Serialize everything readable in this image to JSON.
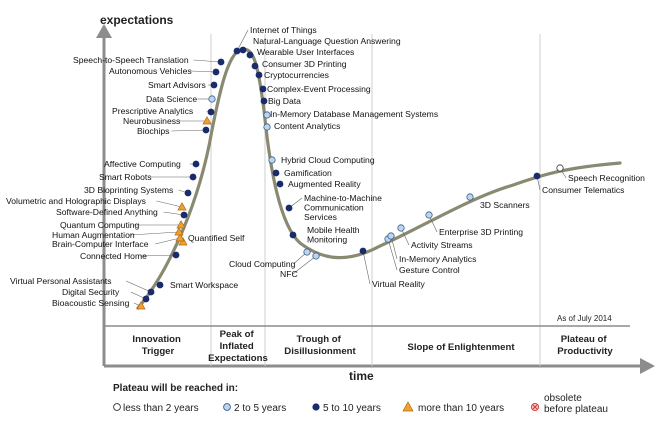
{
  "axes": {
    "y_title": "expectations",
    "x_title": "time"
  },
  "as_of": "As of July 2014",
  "phases": [
    {
      "lines": [
        "Innovation",
        "Trigger"
      ]
    },
    {
      "lines": [
        "Peak of",
        "Inflated",
        "Expectations"
      ]
    },
    {
      "lines": [
        "Trough of",
        "Disillusionment"
      ]
    },
    {
      "lines": [
        "Slope of Enlightenment"
      ]
    },
    {
      "lines": [
        "Plateau of",
        "Productivity"
      ]
    }
  ],
  "legend": {
    "title": "Plateau will be reached in:",
    "items": [
      {
        "label": "less than 2 years",
        "marker": "white-circle",
        "color": "#ffffff"
      },
      {
        "label": "2 to 5 years",
        "marker": "lightblue-circle",
        "color": "#bcd6ee"
      },
      {
        "label": "5 to 10 years",
        "marker": "navy-circle",
        "color": "#1a2b6b"
      },
      {
        "label": "more than 10 years",
        "marker": "orange-triangle",
        "color": "#f0a030"
      },
      {
        "label": "obsolete\nbefore plateau",
        "marker": "red-x-circle",
        "color": "#ee8888"
      }
    ]
  },
  "colors": {
    "curve": "#8a8a72",
    "navy": "#1a2b6b",
    "lightblue": "#bcd6ee",
    "orange": "#f0a030",
    "axis": "#8c8c8c"
  },
  "technologies": [
    {
      "label": "Bioacoustic Sensing",
      "marker": "orange-triangle"
    },
    {
      "label": "Digital Security",
      "marker": "navy-circle"
    },
    {
      "label": "Virtual Personal Assistants",
      "marker": "navy-circle"
    },
    {
      "label": "Smart Workspace",
      "marker": "navy-circle"
    },
    {
      "label": "Connected Home",
      "marker": "navy-circle"
    },
    {
      "label": "Quantified Self",
      "marker": "orange-triangle"
    },
    {
      "label": "Brain-Computer Interface",
      "marker": "orange-triangle"
    },
    {
      "label": "Human Augmentation",
      "marker": "orange-triangle"
    },
    {
      "label": "Quantum Computing",
      "marker": "orange-triangle"
    },
    {
      "label": "Software-Defined Anything",
      "marker": "navy-circle"
    },
    {
      "label": "Volumetric and Holographic Displays",
      "marker": "orange-triangle"
    },
    {
      "label": "3D Bioprinting Systems",
      "marker": "navy-circle"
    },
    {
      "label": "Smart Robots",
      "marker": "navy-circle"
    },
    {
      "label": "Affective  Computing",
      "marker": "navy-circle"
    },
    {
      "label": "Biochips",
      "marker": "navy-circle"
    },
    {
      "label": "Neurobusiness",
      "marker": "orange-triangle"
    },
    {
      "label": "Prescriptive Analytics",
      "marker": "navy-circle"
    },
    {
      "label": "Data Science",
      "marker": "lightblue-circle"
    },
    {
      "label": "Smart Advisors",
      "marker": "navy-circle"
    },
    {
      "label": "Autonomous Vehicles",
      "marker": "navy-circle"
    },
    {
      "label": "Speech-to-Speech Translation",
      "marker": "navy-circle"
    },
    {
      "label": "Internet of Things",
      "marker": "navy-circle"
    },
    {
      "label": "Natural-Language Question Answering",
      "marker": "navy-circle"
    },
    {
      "label": "Wearable User Interfaces",
      "marker": "navy-circle"
    },
    {
      "label": "Consumer 3D Printing",
      "marker": "navy-circle"
    },
    {
      "label": "Cryptocurrencies",
      "marker": "navy-circle"
    },
    {
      "label": "Complex-Event Processing",
      "marker": "navy-circle"
    },
    {
      "label": "Big Data",
      "marker": "navy-circle"
    },
    {
      "label": "In-Memory Database Management Systems",
      "marker": "lightblue-circle"
    },
    {
      "label": "Content Analytics",
      "marker": "lightblue-circle"
    },
    {
      "label": "Hybrid Cloud Computing",
      "marker": "lightblue-circle"
    },
    {
      "label": "Gamification",
      "marker": "navy-circle"
    },
    {
      "label": "Augmented Reality",
      "marker": "navy-circle"
    },
    {
      "label": "Machine-to-Machine\nCommunication\nServices",
      "marker": "navy-circle"
    },
    {
      "label": "Mobile Health\nMonitoring",
      "marker": "navy-circle"
    },
    {
      "label": "Cloud Computing",
      "marker": "lightblue-circle"
    },
    {
      "label": "NFC",
      "marker": "lightblue-circle"
    },
    {
      "label": "Virtual Reality",
      "marker": "navy-circle"
    },
    {
      "label": "Gesture Control",
      "marker": "lightblue-circle"
    },
    {
      "label": "In-Memory Analytics",
      "marker": "lightblue-circle"
    },
    {
      "label": "Activity  Streams",
      "marker": "lightblue-circle"
    },
    {
      "label": "Enterprise 3D Printing",
      "marker": "lightblue-circle"
    },
    {
      "label": "3D Scanners",
      "marker": "lightblue-circle"
    },
    {
      "label": "Consumer Telematics",
      "marker": "navy-circle"
    },
    {
      "label": "Speech Recognition",
      "marker": "white-circle"
    }
  ]
}
